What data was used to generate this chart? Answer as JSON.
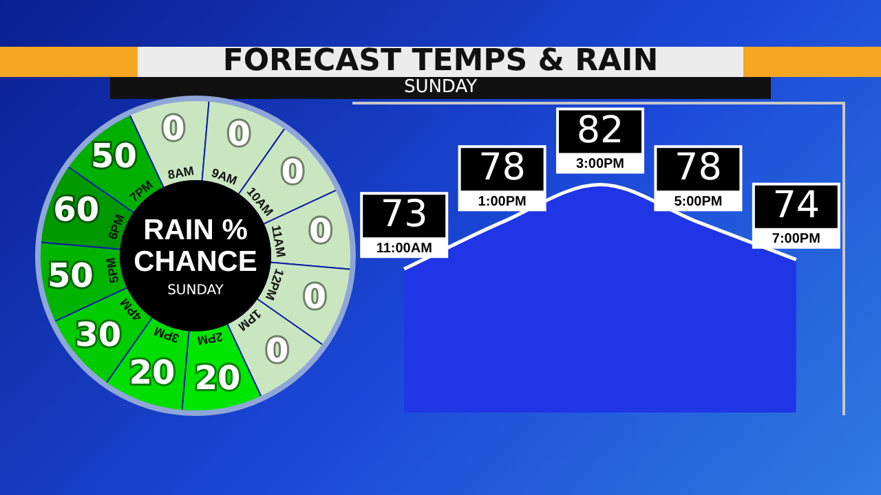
{
  "chart_data": [
    {
      "type": "area",
      "title": "FORECAST TEMPS & RAIN",
      "subtitle": "SUNDAY",
      "categories": [
        "11:00AM",
        "1:00PM",
        "3:00PM",
        "5:00PM",
        "7:00PM"
      ],
      "values": [
        73,
        78,
        82,
        78,
        74
      ],
      "color": "#1f35e6",
      "data_labels": true,
      "tick_labels": false
    },
    {
      "type": "other",
      "title": "RAIN % CHANCE",
      "subtitle": "SUNDAY",
      "categories": [
        "8AM",
        "9AM",
        "10AM",
        "11AM",
        "12PM",
        "1PM",
        "2PM",
        "3PM",
        "4PM",
        "5PM",
        "6PM",
        "7PM"
      ],
      "values": [
        0,
        0,
        0,
        0,
        0,
        0,
        20,
        20,
        30,
        50,
        60,
        50
      ],
      "colors": [
        "#c9e6c0",
        "#c9e6c0",
        "#c9e6c0",
        "#c9e6c0",
        "#c9e6c0",
        "#c9e6c0",
        "#00e600",
        "#00de00",
        "#00cc00",
        "#00b400",
        "#009a00",
        "#00b000"
      ],
      "data_labels": true
    }
  ]
}
